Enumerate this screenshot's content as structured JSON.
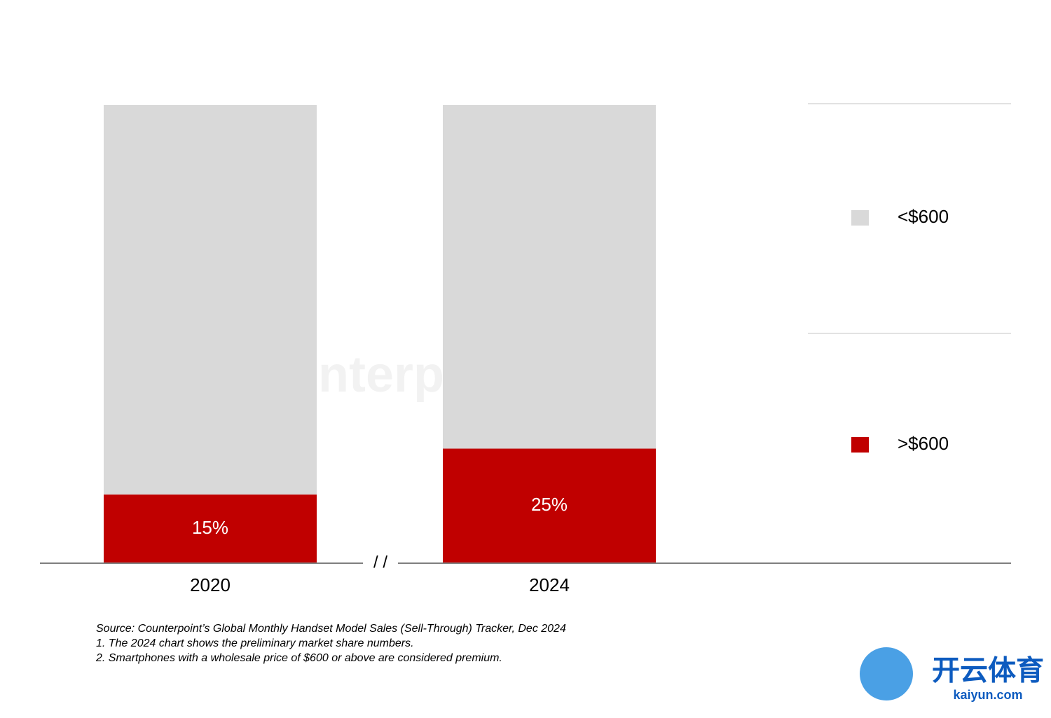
{
  "chart_data": {
    "type": "stacked_bar",
    "categories": [
      "2020",
      "2024"
    ],
    "series": [
      {
        "name": ">$600",
        "color": "#c00000",
        "values": [
          15,
          25
        ],
        "value_labels": [
          "15%",
          "25%"
        ]
      },
      {
        "name": "<$600",
        "color": "#d9d9d9",
        "values": [
          85,
          75
        ]
      }
    ],
    "ylim": [
      0,
      100
    ],
    "axis_break": "/ /",
    "notes": [
      "Source: Counterpoint’s Global Monthly Handset Model Sales (Sell-Through) Tracker, Dec 2024",
      "1. The 2024 chart shows the preliminary market share numbers.",
      "2. Smartphones with a wholesale price of $600 or above are considered premium."
    ]
  },
  "watermark": "Counterpoint",
  "logo": {
    "name": "开云体育",
    "site": "kaiyun.com"
  }
}
